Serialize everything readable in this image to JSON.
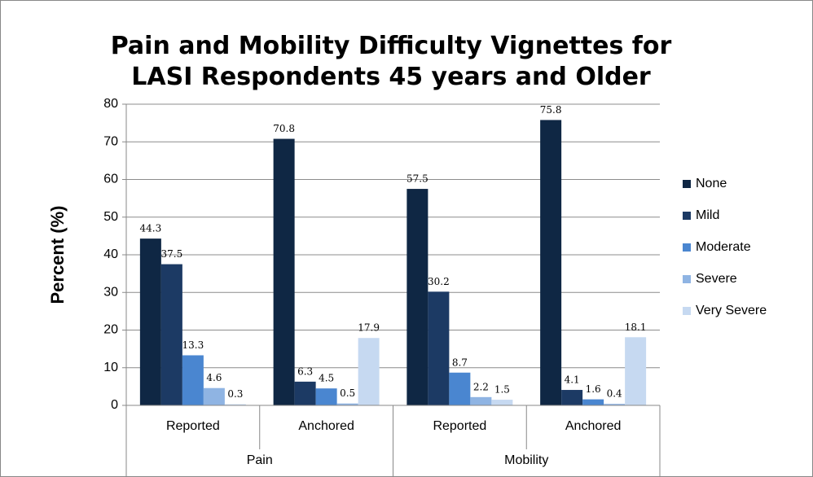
{
  "chart_data": {
    "type": "bar",
    "title": "Pain and Mobility Difficulty Vignettes for LASI Respondents 45 years and Older",
    "y_label": "Percent (%)",
    "categories": [
      "Reported",
      "Anchored",
      "Reported",
      "Anchored"
    ],
    "category_groups": [
      "Pain",
      "Mobility"
    ],
    "series": [
      {
        "name": "None",
        "color": "#0f2744",
        "values": [
          44.3,
          70.8,
          57.5,
          75.8
        ]
      },
      {
        "name": "Mild",
        "color": "#1c3a64",
        "values": [
          37.5,
          6.3,
          30.2,
          4.1
        ]
      },
      {
        "name": "Moderate",
        "color": "#4a86d0",
        "values": [
          13.3,
          4.5,
          8.7,
          1.6
        ]
      },
      {
        "name": "Severe",
        "color": "#8fb4e3",
        "values": [
          4.6,
          0.5,
          2.2,
          0.4
        ]
      },
      {
        "name": "Very Severe",
        "color": "#c6d9f1",
        "values": [
          0.3,
          17.9,
          1.5,
          18.1
        ]
      }
    ],
    "ylim": [
      0,
      80
    ],
    "yticks": [
      0,
      10,
      20,
      30,
      40,
      50,
      60,
      70,
      80
    ],
    "grid": true,
    "legend": "right"
  }
}
